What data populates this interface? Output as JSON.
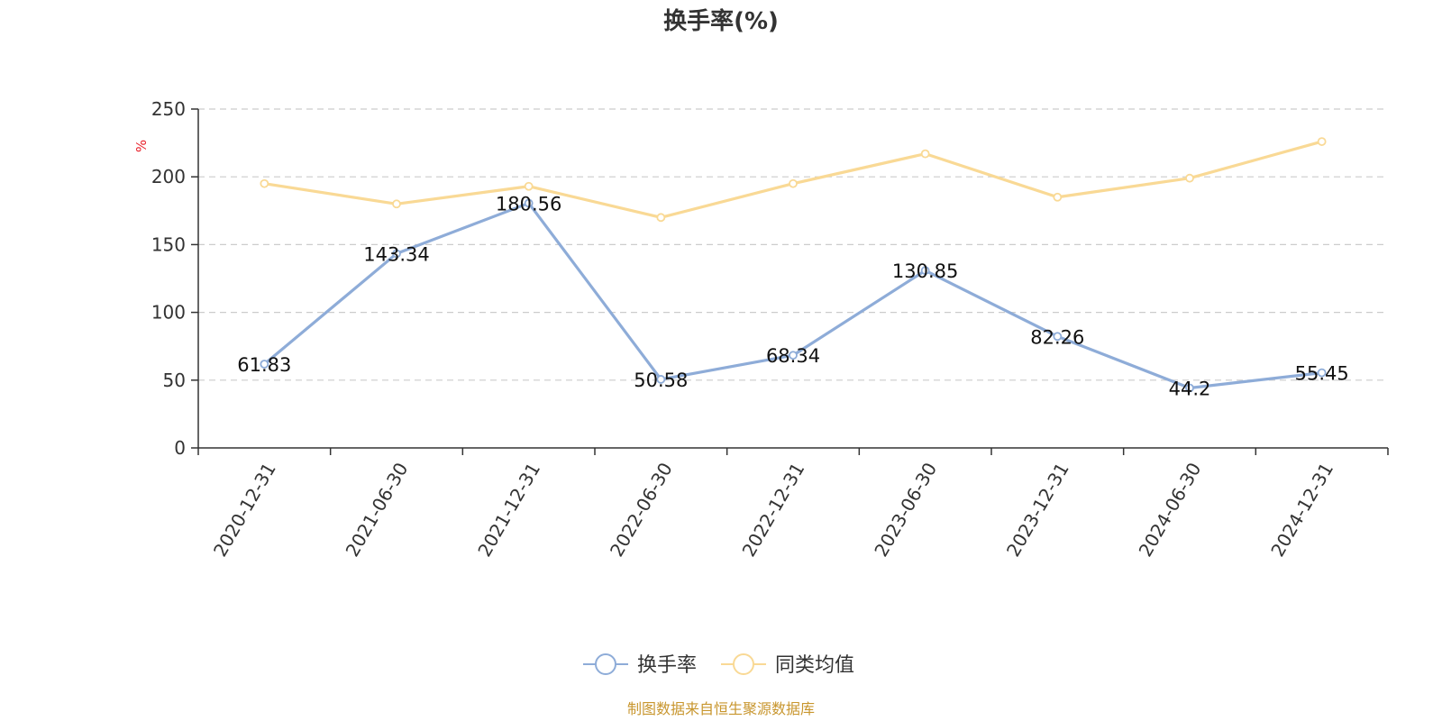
{
  "chart_data": {
    "type": "line",
    "title": "换手率(%)",
    "unit": "%",
    "categories": [
      "2020-12-31",
      "2021-06-30",
      "2021-12-31",
      "2022-06-30",
      "2022-12-31",
      "2023-06-30",
      "2023-12-31",
      "2024-06-30",
      "2024-12-31"
    ],
    "series": [
      {
        "name": "换手率",
        "color": "#8eacd8",
        "values": [
          61.83,
          143.34,
          180.56,
          50.58,
          68.34,
          130.85,
          82.26,
          44.2,
          55.45
        ],
        "data_labels": [
          "61.83",
          "143.34",
          "180.56",
          "50.58",
          "68.34",
          "130.85",
          "82.26",
          "44.2",
          "55.45"
        ]
      },
      {
        "name": "同类均值",
        "color": "#f9d995",
        "values": [
          195,
          180,
          193,
          170,
          195,
          217,
          185,
          199,
          226
        ]
      }
    ],
    "yticks": [
      "0",
      "50",
      "100",
      "150",
      "200",
      "250"
    ],
    "ylim": [
      0,
      250
    ],
    "grid": true,
    "legend_position": "bottom"
  },
  "source": "制图数据来自恒生聚源数据库"
}
